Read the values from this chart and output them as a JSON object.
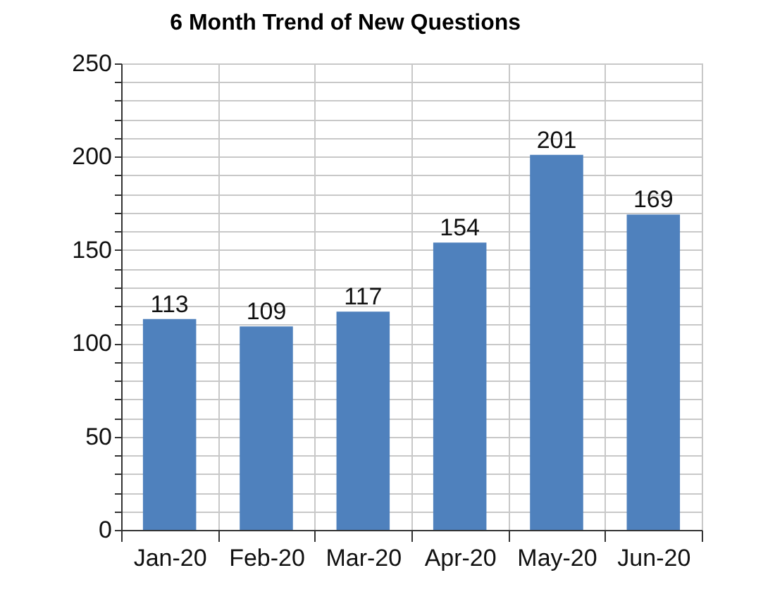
{
  "chart_data": {
    "type": "bar",
    "title": "6 Month Trend of New Questions",
    "categories": [
      "Jan-20",
      "Feb-20",
      "Mar-20",
      "Apr-20",
      "May-20",
      "Jun-20"
    ],
    "values": [
      113,
      109,
      117,
      154,
      201,
      169
    ],
    "color": "#4f81bd",
    "data_labels": true,
    "grid": true,
    "ylim": [
      0,
      250
    ],
    "yticks": [
      0,
      {
        "value": 10,
        "label": null
      },
      {
        "value": 20,
        "label": null
      },
      {
        "value": 30,
        "label": null
      },
      {
        "value": 40,
        "label": null
      },
      50,
      {
        "value": 60,
        "label": null
      },
      {
        "value": 70,
        "label": null
      },
      {
        "value": 80,
        "label": null
      },
      {
        "value": 90,
        "label": null
      },
      100,
      {
        "value": 110,
        "label": null
      },
      {
        "value": 120,
        "label": null
      },
      {
        "value": 130,
        "label": null
      },
      {
        "value": 140,
        "label": null
      },
      150,
      {
        "value": 160,
        "label": null
      },
      {
        "value": 170,
        "label": null
      },
      {
        "value": 180,
        "label": null
      },
      {
        "value": 190,
        "label": null
      },
      200,
      {
        "value": 210,
        "label": null
      },
      {
        "value": 220,
        "label": null
      },
      {
        "value": 230,
        "label": null
      },
      {
        "value": 240,
        "label": null
      },
      250
    ]
  }
}
